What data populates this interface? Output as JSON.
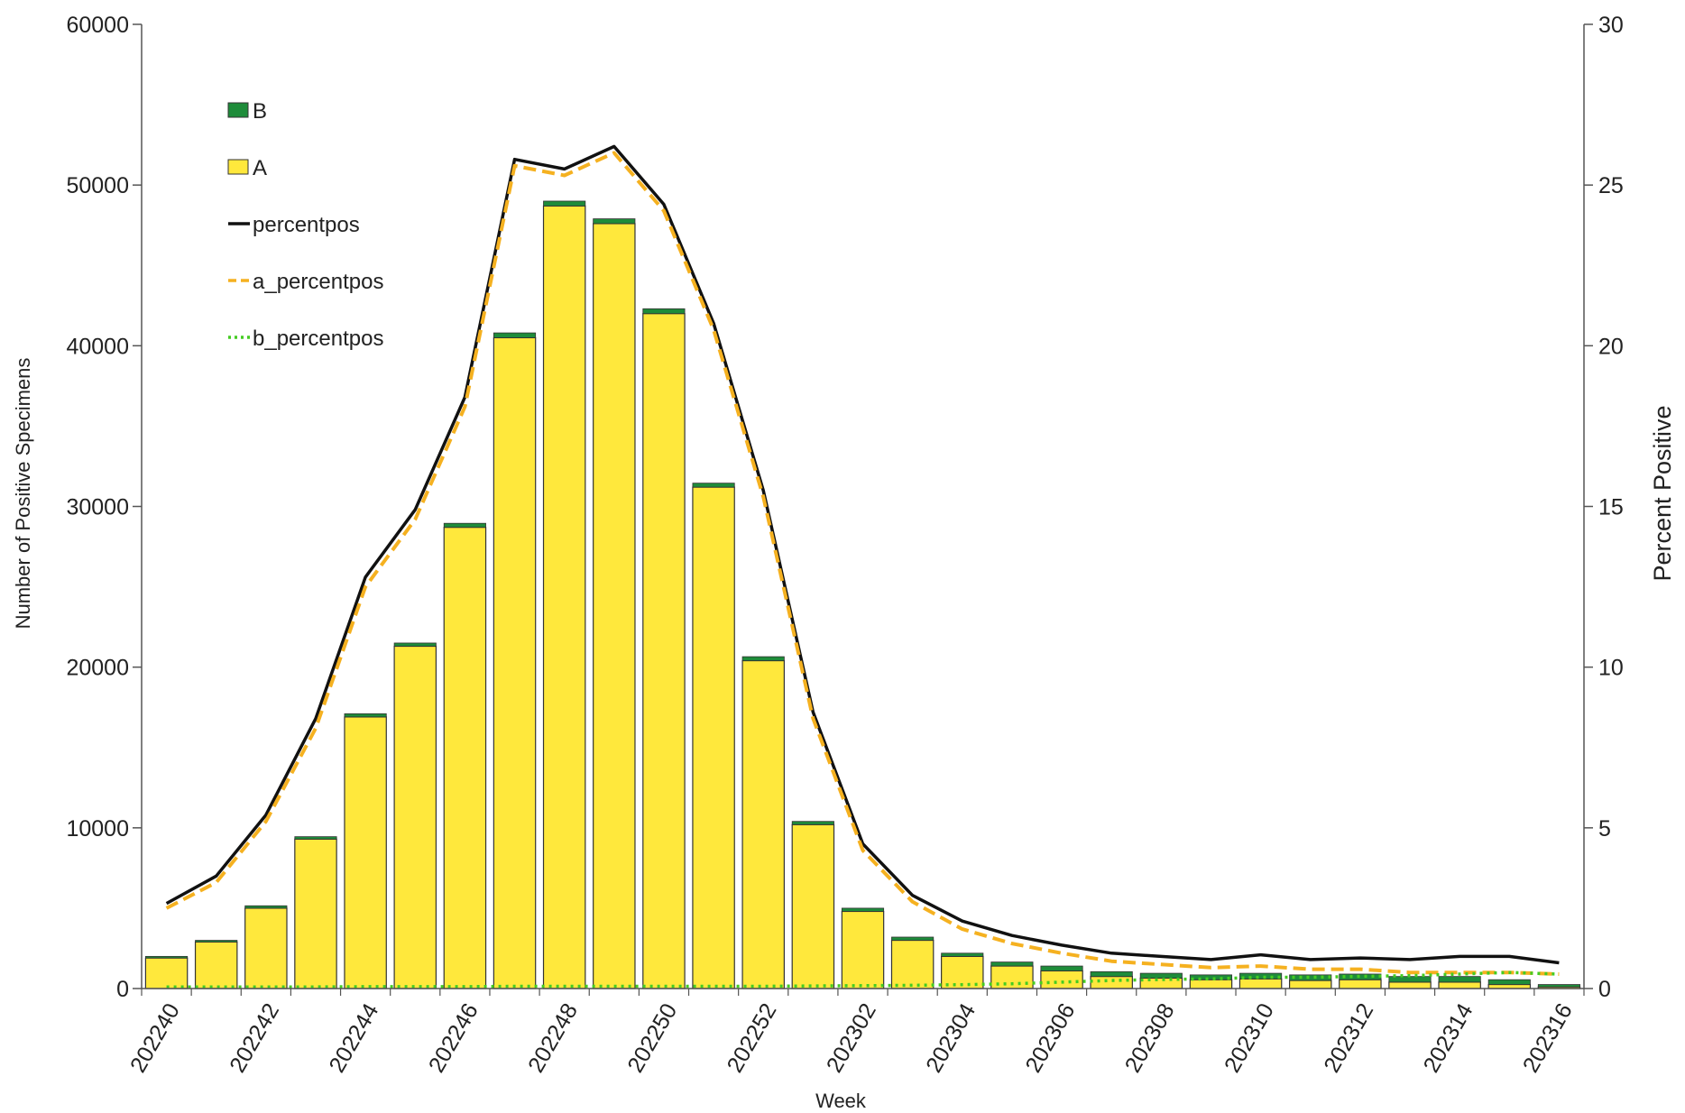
{
  "chart_data": {
    "type": "bar",
    "stacked": true,
    "xlabel": "Week",
    "ylabel": "Number of Positive Specimens",
    "y2label": "Percent Positive",
    "ylim": [
      0,
      60000
    ],
    "y2lim": [
      0,
      30
    ],
    "yticks": [
      0,
      10000,
      20000,
      30000,
      40000,
      50000,
      60000
    ],
    "y2ticks": [
      0,
      5,
      10,
      15,
      20,
      25,
      30
    ],
    "grid": false,
    "legend_position": "top-left",
    "categories": [
      "202240",
      "202241",
      "202242",
      "202243",
      "202244",
      "202245",
      "202246",
      "202247",
      "202248",
      "202249",
      "202250",
      "202251",
      "202252",
      "202301",
      "202302",
      "202303",
      "202304",
      "202305",
      "202306",
      "202307",
      "202308",
      "202309",
      "202310",
      "202311",
      "202312",
      "202313",
      "202314",
      "202315",
      "202316"
    ],
    "tick_labels": [
      "202240",
      "202242",
      "202244",
      "202246",
      "202248",
      "202250",
      "202252",
      "202302",
      "202304",
      "202306",
      "202308",
      "202310",
      "202312",
      "202314",
      "202316"
    ],
    "bar_series": [
      {
        "name": "A",
        "color": "#FFE83C",
        "values": [
          1900,
          2900,
          5000,
          9300,
          16900,
          21300,
          28700,
          40500,
          48700,
          47600,
          42000,
          31200,
          20400,
          10200,
          4800,
          3000,
          2000,
          1400,
          1100,
          750,
          650,
          550,
          600,
          500,
          550,
          400,
          400,
          250,
          100
        ]
      },
      {
        "name": "B",
        "color": "#1E8C3A",
        "values": [
          100,
          100,
          150,
          150,
          200,
          200,
          250,
          300,
          300,
          300,
          300,
          250,
          250,
          200,
          200,
          200,
          200,
          250,
          300,
          300,
          300,
          300,
          350,
          350,
          350,
          350,
          350,
          300,
          150
        ]
      }
    ],
    "line_series": [
      {
        "name": "percentpos",
        "color": "#111111",
        "dash": "solid",
        "values": [
          2.65,
          3.5,
          5.4,
          8.4,
          12.8,
          14.9,
          18.4,
          25.8,
          25.5,
          26.2,
          24.4,
          20.7,
          15.5,
          8.6,
          4.5,
          2.9,
          2.1,
          1.65,
          1.35,
          1.1,
          1.0,
          0.9,
          1.05,
          0.9,
          0.95,
          0.9,
          1.0,
          1.0,
          0.8
        ]
      },
      {
        "name": "a_percentpos",
        "color": "#F5B120",
        "dash": "dashed",
        "values": [
          2.5,
          3.3,
          5.2,
          8.1,
          12.5,
          14.6,
          18.1,
          25.6,
          25.3,
          26.0,
          24.2,
          20.5,
          15.3,
          8.4,
          4.3,
          2.7,
          1.85,
          1.4,
          1.1,
          0.85,
          0.75,
          0.65,
          0.7,
          0.6,
          0.6,
          0.5,
          0.5,
          0.5,
          0.45
        ]
      },
      {
        "name": "b_percentpos",
        "color": "#44CC22",
        "dash": "dotted",
        "values": [
          0.05,
          0.05,
          0.05,
          0.05,
          0.06,
          0.06,
          0.06,
          0.07,
          0.07,
          0.07,
          0.07,
          0.07,
          0.07,
          0.08,
          0.09,
          0.1,
          0.12,
          0.15,
          0.2,
          0.25,
          0.28,
          0.3,
          0.35,
          0.35,
          0.38,
          0.4,
          0.45,
          0.5,
          0.45
        ]
      }
    ],
    "legend": [
      "B",
      "A",
      "percentpos",
      "a_percentpos",
      "b_percentpos"
    ]
  }
}
